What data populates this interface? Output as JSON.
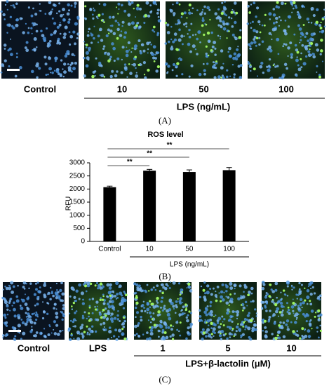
{
  "panel_a": {
    "labels": [
      "Control",
      "10",
      "50",
      "100"
    ],
    "group_label": "LPS (ng/mL)",
    "caption": "(A)"
  },
  "chart_data": {
    "type": "bar",
    "title": "ROS level",
    "ylabel": "RFU",
    "categories": [
      "Control",
      "10",
      "50",
      "100"
    ],
    "series": [
      {
        "color": "#000000",
        "values": [
          2070,
          2700,
          2650,
          2720
        ],
        "errors": [
          40,
          50,
          80,
          100
        ]
      }
    ],
    "ylim": [
      0,
      3000
    ],
    "yticks": [
      0,
      500,
      1000,
      1500,
      2000,
      2500,
      3000
    ],
    "significance": [
      "**",
      "**",
      "**"
    ],
    "group_label": "LPS (ng/mL)",
    "caption": "(B)"
  },
  "panel_c": {
    "labels": [
      "Control",
      "LPS",
      "1",
      "5",
      "10"
    ],
    "group_label": "LPS+β-lactolin (μM)",
    "caption": "(C)"
  }
}
